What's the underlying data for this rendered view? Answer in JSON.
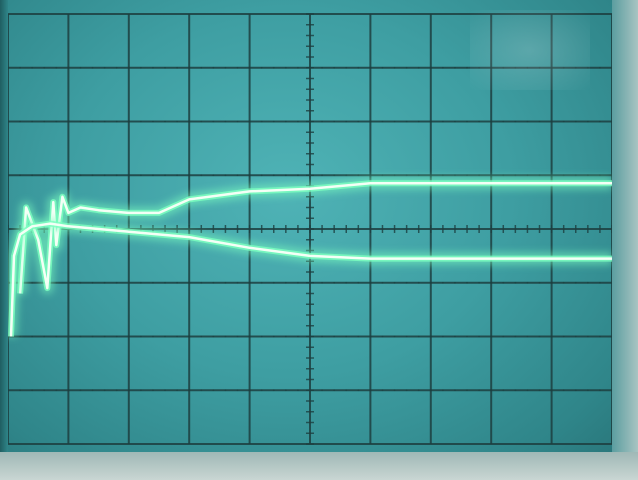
{
  "screen": {
    "grid_columns": 10,
    "grid_rows": 8
  },
  "colors": {
    "phosphor_background": "#3e9ea2",
    "graticule_line": "#1d3f40",
    "trace_core": "#f4fff6",
    "trace_glow": "#7dffc0"
  },
  "traces": [
    {
      "name": "upper",
      "points": [
        [
          0.2,
          -1.2
        ],
        [
          0.3,
          0.4
        ],
        [
          0.5,
          -0.2
        ],
        [
          0.65,
          -1.1
        ],
        [
          0.75,
          0.5
        ],
        [
          0.8,
          -0.3
        ],
        [
          0.9,
          0.6
        ],
        [
          1.0,
          0.3
        ],
        [
          1.2,
          0.4
        ],
        [
          1.5,
          0.35
        ],
        [
          2.0,
          0.3
        ],
        [
          2.5,
          0.3
        ],
        [
          3.0,
          0.55
        ],
        [
          4.0,
          0.7
        ],
        [
          5.0,
          0.75
        ],
        [
          6.0,
          0.85
        ],
        [
          7.0,
          0.85
        ],
        [
          8.0,
          0.85
        ],
        [
          9.0,
          0.85
        ],
        [
          10.0,
          0.85
        ]
      ]
    },
    {
      "name": "lower",
      "points": [
        [
          0.05,
          -2.0
        ],
        [
          0.1,
          -0.5
        ],
        [
          0.2,
          -0.1
        ],
        [
          0.4,
          0.05
        ],
        [
          0.7,
          0.1
        ],
        [
          1.0,
          0.05
        ],
        [
          1.5,
          0.0
        ],
        [
          2.0,
          -0.05
        ],
        [
          3.0,
          -0.15
        ],
        [
          4.0,
          -0.35
        ],
        [
          5.0,
          -0.5
        ],
        [
          6.0,
          -0.55
        ],
        [
          7.0,
          -0.55
        ],
        [
          8.0,
          -0.55
        ],
        [
          9.0,
          -0.55
        ],
        [
          10.0,
          -0.55
        ]
      ]
    }
  ]
}
